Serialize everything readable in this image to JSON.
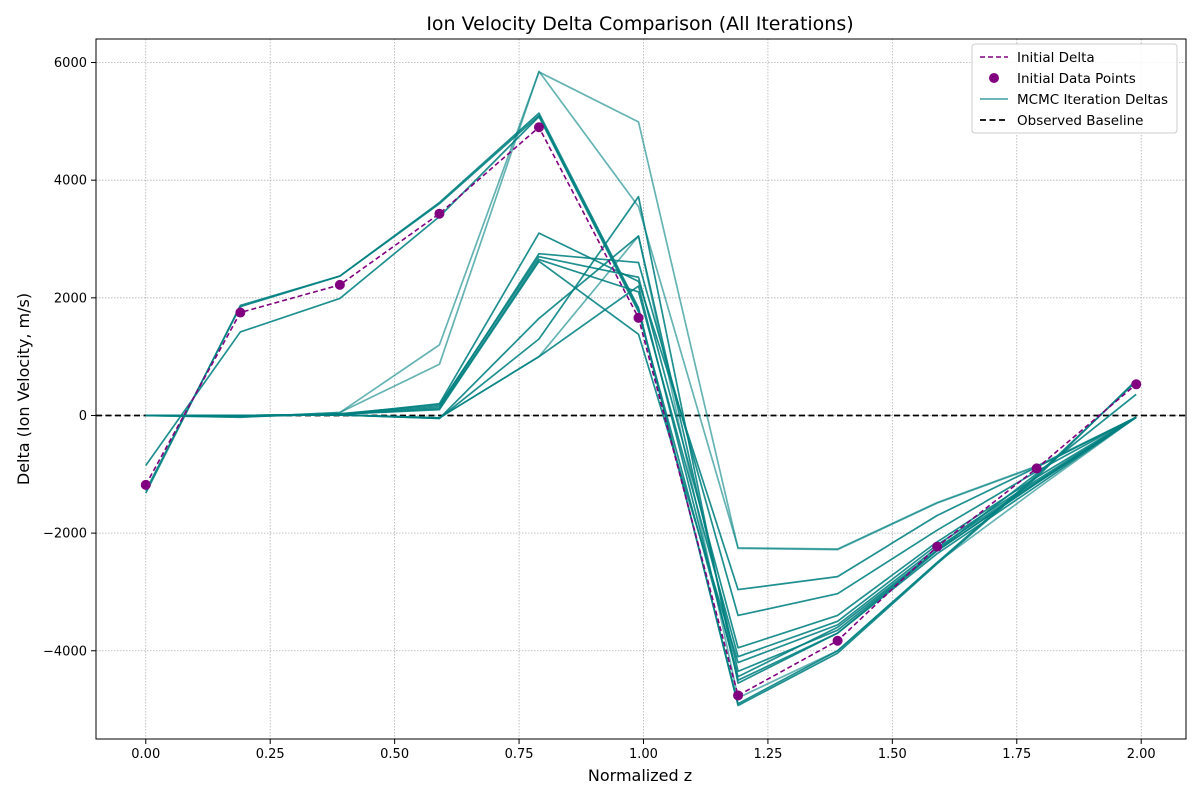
{
  "chart_data": {
    "type": "line",
    "title": "Ion Velocity Delta Comparison (All Iterations)",
    "xlabel": "Normalized z",
    "ylabel": "Delta (Ion Velocity, m/s)",
    "xlim": [
      -0.1,
      2.09
    ],
    "ylim": [
      -5500,
      6400
    ],
    "xticks": [
      0.0,
      0.25,
      0.5,
      0.75,
      1.0,
      1.25,
      1.5,
      1.75,
      2.0
    ],
    "xtick_labels": [
      "0.00",
      "0.25",
      "0.50",
      "0.75",
      "1.00",
      "1.25",
      "1.50",
      "1.75",
      "2.00"
    ],
    "yticks": [
      -4000,
      -2000,
      0,
      2000,
      4000,
      6000
    ],
    "ytick_labels": [
      "−4000",
      "−2000",
      "0",
      "2000",
      "4000",
      "6000"
    ],
    "grid": true,
    "legend_position": "top-right",
    "colors": {
      "initial": "#800080",
      "mcmc": "#008080",
      "baseline": "#000000",
      "grid": "#b0b0b0"
    },
    "x": [
      0.0,
      0.19,
      0.39,
      0.59,
      0.79,
      0.99,
      1.19,
      1.39,
      1.59,
      1.79,
      1.99
    ],
    "initial_delta": {
      "name": "Initial Delta",
      "values": [
        -1180,
        1750,
        2220,
        3430,
        4900,
        1660,
        -4760,
        -3830,
        -2230,
        -900,
        530
      ]
    },
    "initial_points": {
      "name": "Initial Data Points",
      "values": [
        -1180,
        1750,
        2220,
        3430,
        4900,
        1660,
        -4760,
        -3830,
        -2230,
        -900,
        530
      ]
    },
    "baseline": {
      "name": "Observed Baseline",
      "value": 0
    },
    "mcmc_legend": "MCMC Iteration Deltas",
    "series": [
      {
        "values": [
          -1320,
          1870,
          2370,
          3620,
          5140,
          1830,
          -4930,
          -4040,
          -2520,
          -1050,
          600
        ]
      },
      {
        "values": [
          -1280,
          1850,
          2370,
          3600,
          5100,
          1800,
          -4900,
          -4000,
          -2500,
          -1020,
          580
        ]
      },
      {
        "values": [
          -850,
          1420,
          1990,
          3380,
          5080,
          1760,
          -4440,
          -3600,
          -2290,
          -990,
          360
        ]
      },
      {
        "values": [
          0,
          -20,
          20,
          200,
          3100,
          2280,
          -2960,
          -2740,
          -1700,
          -880,
          -30
        ]
      },
      {
        "values": [
          0,
          -10,
          20,
          150,
          2750,
          2600,
          -3400,
          -3030,
          -1950,
          -950,
          -30
        ]
      },
      {
        "values": [
          0,
          -10,
          30,
          180,
          2700,
          2350,
          -3950,
          -3400,
          -2150,
          -1050,
          -30
        ]
      },
      {
        "values": [
          0,
          0,
          20,
          120,
          2650,
          2100,
          -4100,
          -3500,
          -2200,
          -1100,
          -30
        ]
      },
      {
        "values": [
          0,
          0,
          20,
          100,
          2620,
          1380,
          -4200,
          -3560,
          -2250,
          -1130,
          -30
        ]
      },
      {
        "values": [
          0,
          0,
          10,
          -50,
          1300,
          3720,
          -4550,
          -3700,
          -2300,
          -1150,
          -30
        ]
      },
      {
        "values": [
          0,
          0,
          10,
          -50,
          1650,
          3050,
          -4350,
          -3650,
          -2300,
          -1150,
          -30
        ]
      },
      {
        "values": [
          0,
          0,
          10,
          -40,
          1000,
          2200,
          -4500,
          -3700,
          -2350,
          -1200,
          -30
        ]
      },
      {
        "values": [
          0,
          0,
          10,
          -40,
          1000,
          3050,
          -4800,
          -4000,
          -2500,
          -1250,
          -30
        ],
        "light": true
      },
      {
        "values": [
          0,
          -30,
          50,
          1200,
          5840,
          4990,
          -2260,
          -2280,
          -1490,
          -870,
          -30
        ],
        "light": true
      },
      {
        "values": [
          0,
          -30,
          50,
          870,
          5850,
          3550,
          -2250,
          -2270,
          -1480,
          -860,
          -30
        ],
        "light": true
      }
    ]
  }
}
